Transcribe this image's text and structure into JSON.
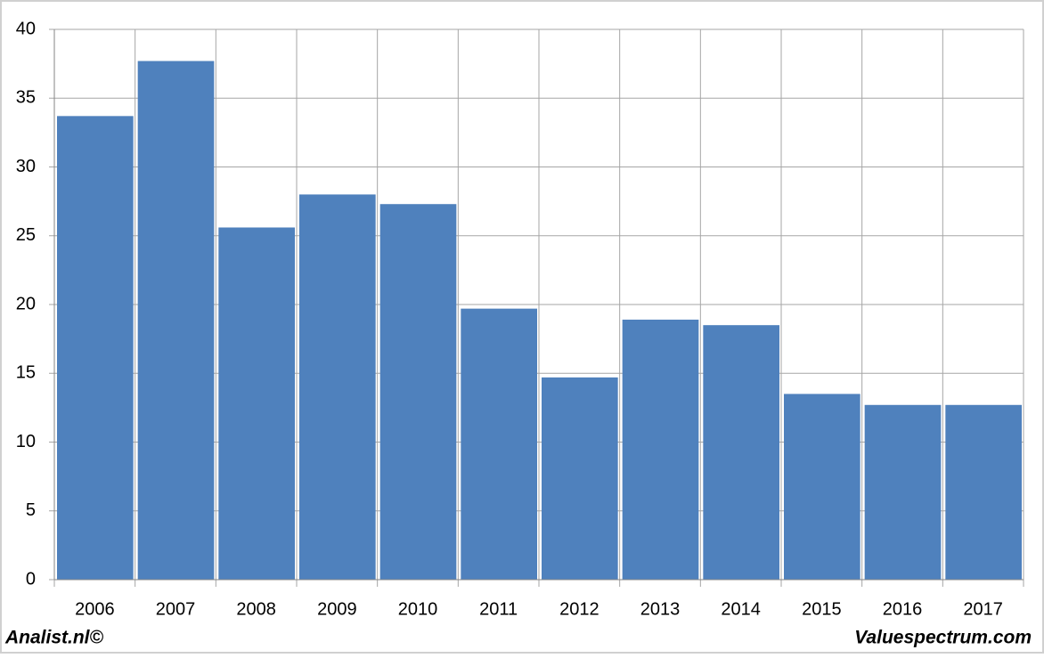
{
  "chart_data": {
    "type": "bar",
    "categories": [
      "2006",
      "2007",
      "2008",
      "2009",
      "2010",
      "2011",
      "2012",
      "2013",
      "2014",
      "2015",
      "2016",
      "2017"
    ],
    "values": [
      33.7,
      37.7,
      25.6,
      28.0,
      27.3,
      19.7,
      14.7,
      18.9,
      18.5,
      13.5,
      12.7,
      12.7
    ],
    "color": "#4f81bd",
    "ylim": [
      0,
      40
    ],
    "yticks": [
      0,
      5,
      10,
      15,
      20,
      25,
      30,
      35,
      40
    ],
    "grid": true
  },
  "footer": {
    "left": "Analist.nl©",
    "right": "Valuespectrum.com"
  }
}
